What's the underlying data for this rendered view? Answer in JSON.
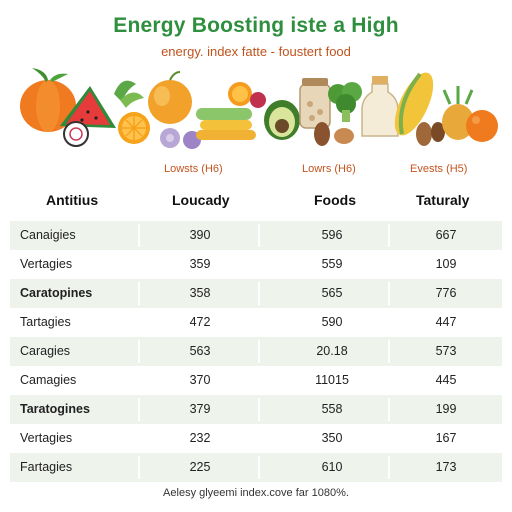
{
  "title": "Energy Boosting iste a High",
  "subtitle": "energy. index fatte - foustert food",
  "groups": [
    "Lowsts (H6)",
    "Lowrs (H6)",
    "Evests (H5)"
  ],
  "columns": [
    "Antitius",
    "Loucady",
    "Foods",
    "Taturaly"
  ],
  "rows": [
    {
      "name": "Canaigies",
      "v1": "390",
      "v2": "596",
      "v3": "667",
      "bold": false
    },
    {
      "name": "Vertagies",
      "v1": "359",
      "v2": "559",
      "v3": "109",
      "bold": false
    },
    {
      "name": "Caratopines",
      "v1": "358",
      "v2": "565",
      "v3": "776",
      "bold": true
    },
    {
      "name": "Tartagies",
      "v1": "472",
      "v2": "590",
      "v3": "447",
      "bold": false
    },
    {
      "name": "Caragies",
      "v1": "563",
      "v2": "20.18",
      "v3": "573",
      "bold": false
    },
    {
      "name": "Camagies",
      "v1": "370",
      "v2": "11015",
      "v3": "445",
      "bold": false
    },
    {
      "name": "Taratogines",
      "v1": "379",
      "v2": "558",
      "v3": "199",
      "bold": true
    },
    {
      "name": "Vertagies",
      "v1": "232",
      "v2": "350",
      "v3": "167",
      "bold": false
    },
    {
      "name": "Fartagies",
      "v1": "225",
      "v2": "610",
      "v3": "173",
      "bold": false
    }
  ],
  "footnote": "Aelesy glyeemi index.cove far 1080%.",
  "colors": {
    "title": "#2e8f3e",
    "accent": "#c4541f",
    "row_shade": "#eef3ec"
  },
  "banner_icons": [
    "pumpkin-icon",
    "watermelon-icon",
    "orange-slice-icon",
    "onion-icon",
    "plum-icon",
    "squash-icon",
    "cucumber-icon",
    "citrus-slice-icon",
    "avocado-icon",
    "jar-icon",
    "broccoli-icon",
    "nut-icon",
    "milk-bottle-icon",
    "corn-icon",
    "pineapple-icon"
  ]
}
